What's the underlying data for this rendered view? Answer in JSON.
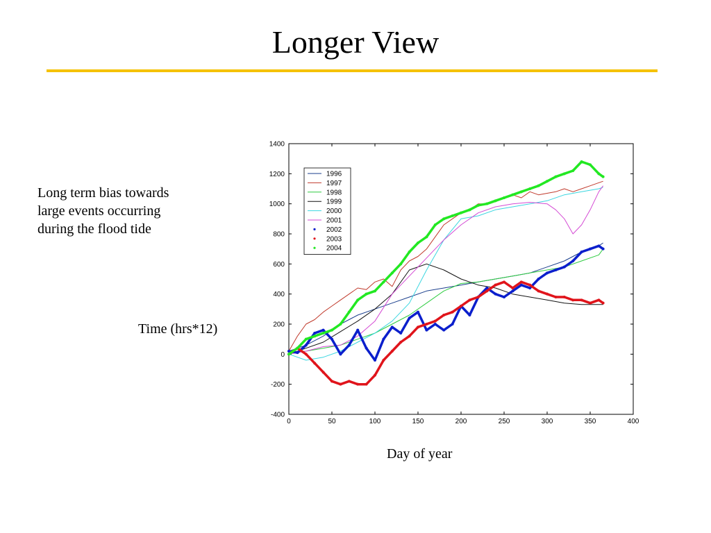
{
  "slide": {
    "title": "Longer View",
    "note": "Long term bias towards large events occurring during the flood tide",
    "y_caption": "Time (hrs*12)",
    "x_caption": "Day of year",
    "rule_color": "#f5c200"
  },
  "chart_data": {
    "type": "line",
    "title": "",
    "xlabel": "Day of year",
    "ylabel": "Time (hrs*12)",
    "xlim": [
      0,
      400
    ],
    "ylim": [
      -400,
      1400
    ],
    "x_ticks": [
      0,
      50,
      100,
      150,
      200,
      250,
      300,
      350,
      400
    ],
    "y_ticks": [
      -400,
      -200,
      0,
      200,
      400,
      600,
      800,
      1000,
      1200,
      1400
    ],
    "grid": false,
    "legend_position": "top-left",
    "series": [
      {
        "name": "1996",
        "color": "#1a3e8c",
        "style": "line",
        "x": [
          0,
          20,
          40,
          60,
          80,
          100,
          120,
          140,
          160,
          180,
          200,
          220,
          240,
          260,
          280,
          300,
          320,
          340,
          360,
          365
        ],
        "y": [
          20,
          60,
          120,
          200,
          260,
          300,
          340,
          380,
          420,
          440,
          460,
          480,
          500,
          520,
          540,
          580,
          620,
          680,
          720,
          740
        ]
      },
      {
        "name": "1997",
        "color": "#c0392b",
        "style": "line",
        "x": [
          0,
          10,
          20,
          30,
          40,
          50,
          60,
          70,
          80,
          90,
          100,
          110,
          120,
          130,
          140,
          150,
          160,
          170,
          180,
          190,
          200,
          210,
          220,
          230,
          240,
          250,
          260,
          270,
          280,
          290,
          300,
          310,
          320,
          330,
          340,
          350,
          360,
          365
        ],
        "y": [
          20,
          120,
          200,
          230,
          280,
          320,
          360,
          400,
          440,
          430,
          480,
          500,
          450,
          560,
          620,
          650,
          700,
          780,
          860,
          900,
          940,
          960,
          1000,
          1000,
          1020,
          1040,
          1060,
          1040,
          1080,
          1060,
          1070,
          1080,
          1100,
          1080,
          1100,
          1120,
          1140,
          1150
        ]
      },
      {
        "name": "1998",
        "color": "#2ecc40",
        "style": "line",
        "x": [
          0,
          20,
          40,
          60,
          80,
          100,
          120,
          140,
          160,
          180,
          200,
          220,
          240,
          260,
          280,
          300,
          320,
          340,
          360,
          365
        ],
        "y": [
          10,
          20,
          40,
          60,
          100,
          140,
          200,
          260,
          340,
          420,
          470,
          480,
          500,
          520,
          540,
          560,
          580,
          620,
          660,
          700
        ]
      },
      {
        "name": "1999",
        "color": "#111111",
        "style": "line",
        "x": [
          0,
          20,
          40,
          60,
          80,
          100,
          120,
          140,
          160,
          180,
          200,
          220,
          240,
          260,
          280,
          300,
          320,
          340,
          360,
          365
        ],
        "y": [
          0,
          40,
          80,
          150,
          220,
          300,
          400,
          560,
          600,
          560,
          500,
          460,
          440,
          400,
          380,
          360,
          340,
          330,
          330,
          330
        ]
      },
      {
        "name": "2000",
        "color": "#3ad6e0",
        "style": "line",
        "x": [
          0,
          20,
          40,
          60,
          80,
          100,
          120,
          140,
          160,
          180,
          200,
          220,
          240,
          260,
          280,
          300,
          320,
          340,
          360,
          365
        ],
        "y": [
          0,
          -40,
          -20,
          20,
          80,
          140,
          220,
          340,
          560,
          760,
          900,
          920,
          960,
          980,
          1000,
          1020,
          1060,
          1080,
          1100,
          1110
        ]
      },
      {
        "name": "2001",
        "color": "#d44ad4",
        "style": "line",
        "x": [
          0,
          20,
          40,
          60,
          80,
          100,
          120,
          140,
          160,
          180,
          200,
          220,
          240,
          260,
          280,
          300,
          310,
          320,
          330,
          340,
          350,
          360,
          365
        ],
        "y": [
          0,
          20,
          50,
          60,
          120,
          220,
          400,
          520,
          640,
          760,
          860,
          940,
          980,
          1000,
          1010,
          1000,
          960,
          900,
          800,
          860,
          960,
          1080,
          1120
        ]
      },
      {
        "name": "2002",
        "color": "#0b1fcc",
        "style": "dots",
        "x": [
          0,
          10,
          20,
          30,
          40,
          50,
          60,
          70,
          80,
          90,
          100,
          110,
          120,
          130,
          140,
          150,
          160,
          170,
          180,
          190,
          200,
          210,
          220,
          230,
          240,
          250,
          260,
          270,
          280,
          290,
          300,
          310,
          320,
          330,
          340,
          350,
          360,
          365
        ],
        "y": [
          20,
          10,
          60,
          140,
          160,
          100,
          0,
          60,
          160,
          40,
          -40,
          100,
          180,
          140,
          240,
          280,
          160,
          200,
          160,
          200,
          320,
          260,
          380,
          440,
          400,
          380,
          420,
          460,
          440,
          500,
          540,
          560,
          580,
          620,
          680,
          700,
          720,
          700
        ]
      },
      {
        "name": "2003",
        "color": "#e0141b",
        "style": "dots",
        "x": [
          0,
          10,
          20,
          30,
          40,
          50,
          60,
          70,
          80,
          90,
          100,
          110,
          120,
          130,
          140,
          150,
          160,
          170,
          180,
          190,
          200,
          210,
          220,
          230,
          240,
          250,
          260,
          270,
          280,
          290,
          300,
          310,
          320,
          330,
          340,
          350,
          360,
          365
        ],
        "y": [
          0,
          40,
          0,
          -60,
          -120,
          -180,
          -200,
          -180,
          -200,
          -200,
          -140,
          -40,
          20,
          80,
          120,
          180,
          200,
          220,
          260,
          280,
          320,
          360,
          380,
          420,
          460,
          480,
          440,
          480,
          460,
          420,
          400,
          380,
          380,
          360,
          360,
          340,
          360,
          340
        ]
      },
      {
        "name": "2004",
        "color": "#22e822",
        "style": "dots",
        "x": [
          0,
          10,
          20,
          30,
          40,
          50,
          60,
          70,
          80,
          90,
          100,
          110,
          120,
          130,
          140,
          150,
          160,
          170,
          180,
          190,
          200,
          210,
          220,
          230,
          240,
          250,
          260,
          270,
          280,
          290,
          300,
          310,
          320,
          330,
          340,
          350,
          360,
          365
        ],
        "y": [
          0,
          40,
          100,
          120,
          140,
          160,
          200,
          280,
          360,
          400,
          420,
          480,
          540,
          600,
          680,
          740,
          780,
          860,
          900,
          920,
          940,
          960,
          990,
          1000,
          1020,
          1040,
          1060,
          1080,
          1100,
          1120,
          1150,
          1180,
          1200,
          1220,
          1280,
          1260,
          1200,
          1180
        ]
      }
    ]
  }
}
